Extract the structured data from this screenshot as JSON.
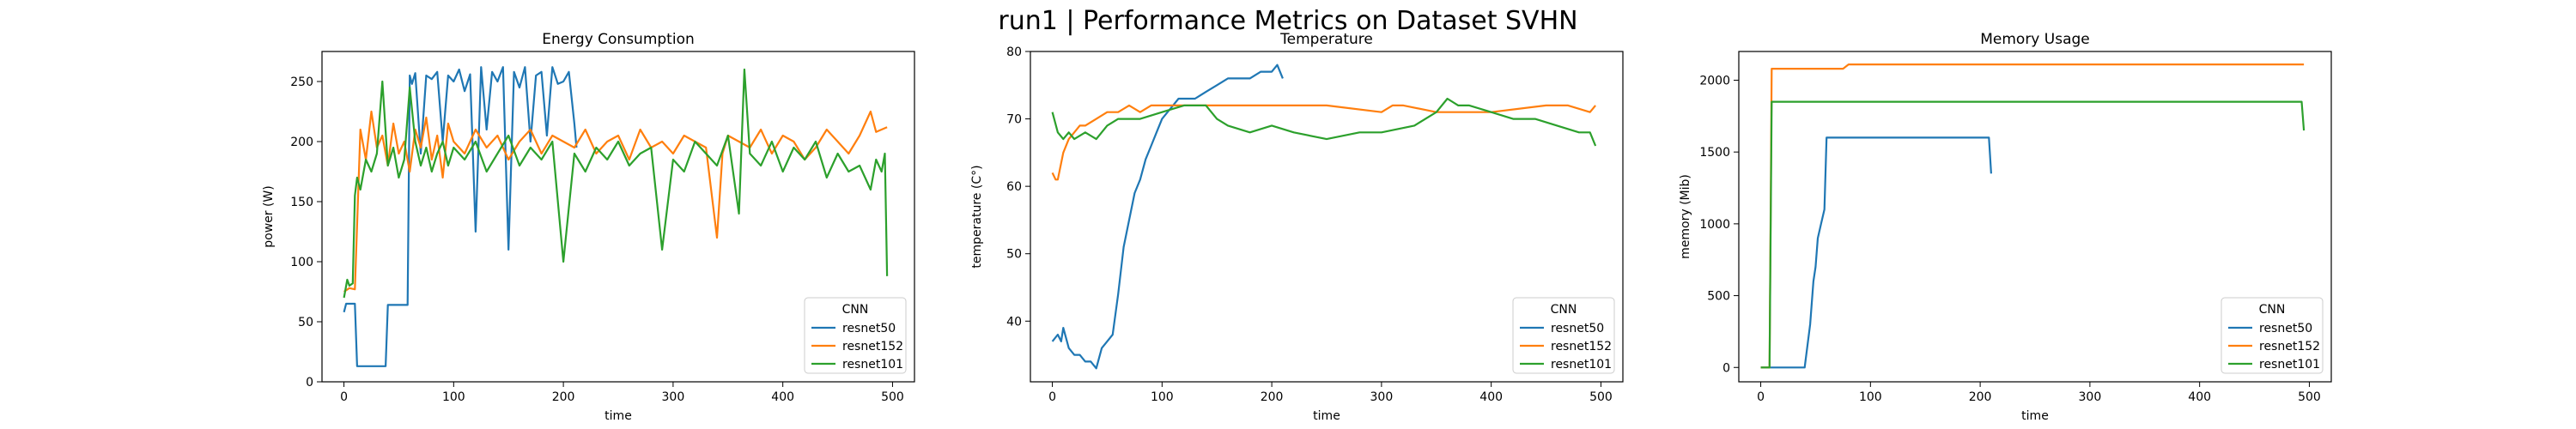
{
  "suptitle": "run1 | Performance Metrics on Dataset SVHN",
  "colors": {
    "resnet50": "#1f77b4",
    "resnet152": "#ff7f0e",
    "resnet101": "#2ca02c"
  },
  "chart_data": [
    {
      "type": "line",
      "title": "Energy Consumption",
      "xlabel": "time",
      "ylabel": "power (W)",
      "xlim": [
        -20,
        520
      ],
      "ylim": [
        0,
        275
      ],
      "xticks": [
        0,
        100,
        200,
        300,
        400,
        500
      ],
      "yticks": [
        0,
        50,
        100,
        150,
        200,
        250
      ],
      "grid": false,
      "legend": {
        "title": "CNN",
        "location": "lower-right"
      },
      "series": [
        {
          "name": "resnet50",
          "x": [
            0,
            2,
            5,
            8,
            10,
            12,
            15,
            20,
            25,
            30,
            35,
            38,
            40,
            45,
            50,
            55,
            58,
            60,
            62,
            65,
            70,
            75,
            80,
            85,
            90,
            95,
            100,
            105,
            110,
            115,
            120,
            125,
            130,
            135,
            140,
            145,
            150,
            155,
            160,
            165,
            170,
            175,
            180,
            185,
            190,
            195,
            200,
            205,
            210,
            212
          ],
          "y": [
            58,
            65,
            65,
            65,
            65,
            13,
            13,
            13,
            13,
            13,
            13,
            13,
            64,
            64,
            64,
            64,
            64,
            255,
            248,
            257,
            190,
            255,
            252,
            258,
            200,
            255,
            250,
            260,
            242,
            256,
            125,
            262,
            210,
            258,
            250,
            262,
            110,
            258,
            245,
            262,
            200,
            255,
            258,
            205,
            262,
            248,
            250,
            258,
            215,
            195
          ]
        },
        {
          "name": "resnet152",
          "x": [
            0,
            5,
            10,
            15,
            20,
            25,
            30,
            35,
            40,
            45,
            50,
            55,
            60,
            65,
            70,
            75,
            80,
            85,
            90,
            95,
            100,
            110,
            120,
            130,
            140,
            150,
            160,
            170,
            180,
            190,
            200,
            210,
            220,
            230,
            240,
            250,
            260,
            270,
            280,
            290,
            300,
            310,
            320,
            330,
            340,
            345,
            350,
            360,
            370,
            380,
            390,
            400,
            410,
            420,
            430,
            440,
            450,
            460,
            470,
            480,
            485,
            490,
            495
          ],
          "y": [
            75,
            78,
            77,
            210,
            185,
            225,
            195,
            205,
            180,
            215,
            190,
            200,
            175,
            210,
            195,
            220,
            185,
            205,
            170,
            215,
            200,
            190,
            210,
            195,
            205,
            185,
            200,
            210,
            190,
            205,
            200,
            195,
            210,
            190,
            200,
            205,
            185,
            210,
            195,
            200,
            190,
            205,
            200,
            195,
            120,
            190,
            205,
            200,
            195,
            210,
            190,
            205,
            200,
            185,
            195,
            210,
            200,
            190,
            205,
            225,
            208,
            210,
            212
          ]
        },
        {
          "name": "resnet101",
          "x": [
            0,
            3,
            5,
            8,
            10,
            12,
            15,
            20,
            25,
            30,
            35,
            40,
            45,
            50,
            55,
            60,
            65,
            70,
            75,
            80,
            85,
            90,
            95,
            100,
            110,
            120,
            130,
            140,
            150,
            160,
            170,
            180,
            190,
            200,
            210,
            220,
            230,
            240,
            250,
            260,
            270,
            280,
            290,
            300,
            310,
            320,
            330,
            340,
            350,
            360,
            365,
            370,
            380,
            390,
            400,
            410,
            420,
            430,
            440,
            450,
            460,
            470,
            480,
            485,
            490,
            493,
            495
          ],
          "y": [
            70,
            85,
            80,
            82,
            155,
            170,
            160,
            185,
            175,
            190,
            250,
            180,
            195,
            170,
            185,
            245,
            200,
            180,
            195,
            175,
            190,
            200,
            180,
            195,
            185,
            200,
            175,
            190,
            205,
            180,
            195,
            185,
            200,
            100,
            190,
            175,
            195,
            185,
            200,
            180,
            190,
            195,
            110,
            185,
            175,
            200,
            190,
            180,
            205,
            140,
            260,
            190,
            180,
            200,
            175,
            195,
            185,
            200,
            170,
            190,
            175,
            180,
            160,
            185,
            175,
            190,
            88
          ]
        }
      ]
    },
    {
      "type": "line",
      "title": "Temperature",
      "xlabel": "time",
      "ylabel": "temperature (C°)",
      "xlim": [
        -20,
        520
      ],
      "ylim": [
        31,
        80
      ],
      "xticks": [
        0,
        100,
        200,
        300,
        400,
        500
      ],
      "yticks": [
        40,
        50,
        60,
        70,
        80
      ],
      "grid": false,
      "legend": {
        "title": "CNN",
        "location": "lower-right"
      },
      "series": [
        {
          "name": "resnet50",
          "x": [
            0,
            5,
            8,
            10,
            15,
            20,
            25,
            30,
            35,
            40,
            45,
            50,
            55,
            60,
            65,
            70,
            75,
            80,
            85,
            90,
            95,
            100,
            105,
            110,
            115,
            120,
            130,
            140,
            150,
            160,
            170,
            180,
            190,
            200,
            205,
            210
          ],
          "y": [
            37,
            38,
            37,
            39,
            36,
            35,
            35,
            34,
            34,
            33,
            36,
            37,
            38,
            44,
            51,
            55,
            59,
            61,
            64,
            66,
            68,
            70,
            71,
            72,
            73,
            73,
            73,
            74,
            75,
            76,
            76,
            76,
            77,
            77,
            78,
            76
          ]
        },
        {
          "name": "resnet152",
          "x": [
            0,
            3,
            5,
            10,
            15,
            20,
            25,
            30,
            40,
            50,
            60,
            70,
            80,
            90,
            100,
            120,
            150,
            200,
            250,
            300,
            310,
            320,
            350,
            400,
            450,
            470,
            490,
            495
          ],
          "y": [
            62,
            61,
            61,
            65,
            67,
            68,
            69,
            69,
            70,
            71,
            71,
            72,
            71,
            72,
            72,
            72,
            72,
            72,
            72,
            71,
            72,
            72,
            71,
            71,
            72,
            72,
            71,
            72
          ]
        },
        {
          "name": "resnet101",
          "x": [
            0,
            5,
            10,
            15,
            20,
            30,
            40,
            50,
            60,
            80,
            100,
            120,
            140,
            150,
            160,
            180,
            200,
            220,
            250,
            280,
            300,
            330,
            350,
            360,
            370,
            380,
            400,
            420,
            440,
            460,
            480,
            490,
            495
          ],
          "y": [
            71,
            68,
            67,
            68,
            67,
            68,
            67,
            69,
            70,
            70,
            71,
            72,
            72,
            70,
            69,
            68,
            69,
            68,
            67,
            68,
            68,
            69,
            71,
            73,
            72,
            72,
            71,
            70,
            70,
            69,
            68,
            68,
            66
          ]
        }
      ]
    },
    {
      "type": "line",
      "title": "Memory Usage",
      "xlabel": "time",
      "ylabel": "memory (Mib)",
      "xlim": [
        -20,
        520
      ],
      "ylim": [
        -100,
        2200
      ],
      "xticks": [
        0,
        100,
        200,
        300,
        400,
        500
      ],
      "yticks": [
        0,
        500,
        1000,
        1500,
        2000
      ],
      "grid": false,
      "legend": {
        "title": "CNN",
        "location": "lower-right"
      },
      "series": [
        {
          "name": "resnet50",
          "x": [
            0,
            10,
            20,
            30,
            35,
            40,
            45,
            48,
            50,
            52,
            55,
            58,
            60,
            200,
            208,
            210
          ],
          "y": [
            0,
            0,
            0,
            0,
            0,
            0,
            300,
            600,
            700,
            900,
            1000,
            1100,
            1600,
            1600,
            1600,
            1350
          ]
        },
        {
          "name": "resnet152",
          "x": [
            0,
            5,
            8,
            10,
            75,
            80,
            490,
            495
          ],
          "y": [
            0,
            0,
            0,
            2080,
            2080,
            2110,
            2110,
            2110
          ]
        },
        {
          "name": "resnet101",
          "x": [
            0,
            5,
            8,
            10,
            490,
            493,
            495
          ],
          "y": [
            0,
            0,
            0,
            1850,
            1850,
            1850,
            1650
          ]
        }
      ]
    }
  ]
}
